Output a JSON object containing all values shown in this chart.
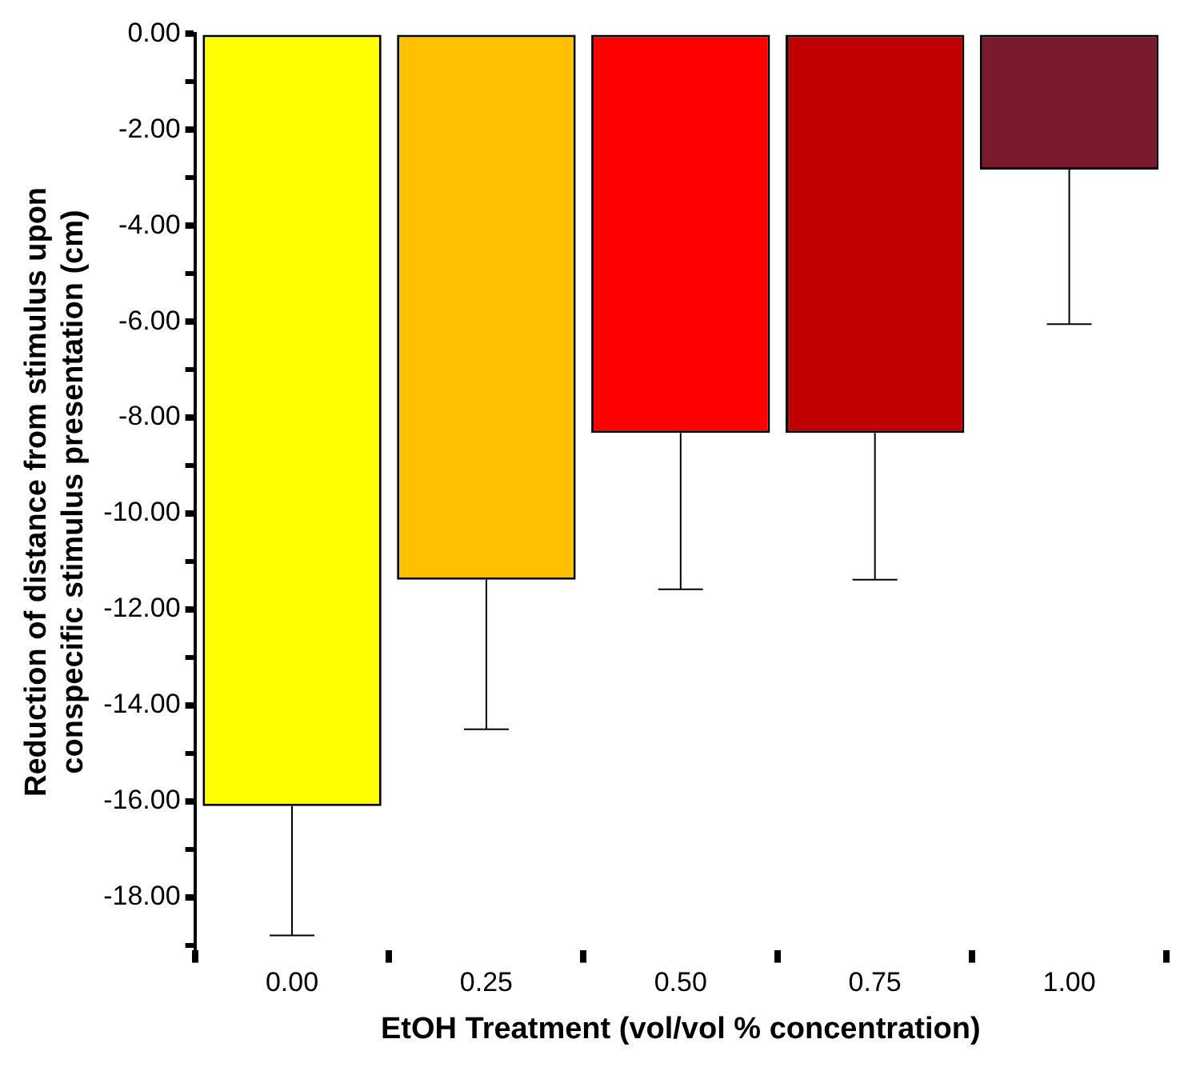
{
  "chart_data": {
    "type": "bar",
    "xlabel": "EtOH Treatment (vol/vol % concentration)",
    "ylabel": "Reduction of distance from stimulus upon conspecific stimulus presentation (cm)",
    "categories": [
      "0.00",
      "0.25",
      "0.50",
      "0.75",
      "1.00"
    ],
    "values": [
      -16.1,
      -11.38,
      -8.32,
      -8.32,
      -2.83
    ],
    "colors": [
      "#ffff00",
      "#ffc000",
      "#ff0000",
      "#c00000",
      "#7b1a2c"
    ],
    "errors": [
      [
        -18.8,
        -16.1
      ],
      [
        -14.5,
        -11.38
      ],
      [
        -11.58,
        -8.32
      ],
      [
        -11.38,
        -8.32
      ],
      [
        -6.05,
        -2.83
      ]
    ],
    "ylim": [
      -19.1,
      0
    ],
    "yticks": [
      {
        "value": -19,
        "label": null
      },
      {
        "value": -18,
        "label": "-18.00"
      },
      {
        "value": -17,
        "label": null
      },
      {
        "value": -16,
        "label": "-16.00"
      },
      {
        "value": -15,
        "label": null
      },
      {
        "value": -14,
        "label": "-14.00"
      },
      {
        "value": -13,
        "label": null
      },
      {
        "value": -12,
        "label": "-12.00"
      },
      {
        "value": -11,
        "label": null
      },
      {
        "value": -10,
        "label": "-10.00"
      },
      {
        "value": -9,
        "label": null
      },
      {
        "value": -8,
        "label": "-8.00"
      },
      {
        "value": -7,
        "label": null
      },
      {
        "value": -6,
        "label": "-6.00"
      },
      {
        "value": -5,
        "label": null
      },
      {
        "value": -4,
        "label": "-4.00"
      },
      {
        "value": -3,
        "label": null
      },
      {
        "value": -2,
        "label": "-2.00"
      },
      {
        "value": -1,
        "label": null
      },
      {
        "value": 0,
        "label": "0.00"
      }
    ],
    "grid": false,
    "legend": false
  }
}
